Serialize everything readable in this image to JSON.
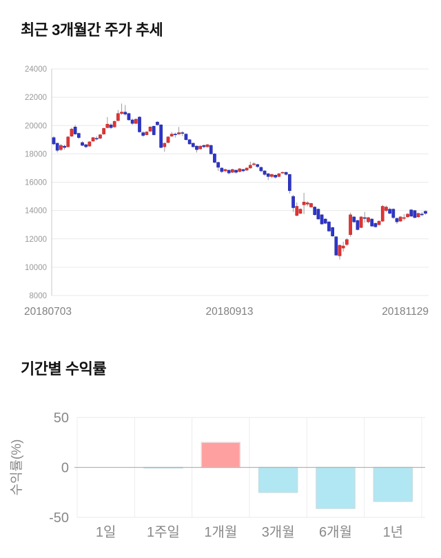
{
  "page": {
    "background": "#ffffff"
  },
  "chart_data": [
    {
      "type": "candlestick",
      "title": "최근 3개월간 주가 추세",
      "x_tick_labels": [
        "20180703",
        "20180913",
        "20181129"
      ],
      "y_ticks": [
        24000,
        22000,
        20000,
        18000,
        16000,
        14000,
        12000,
        10000,
        8000
      ],
      "ylim": [
        8000,
        24000
      ],
      "grid": "horizontal",
      "up_color": "#e03434",
      "down_color": "#2d35cb",
      "wick_color": "#999999",
      "axis_text_color": "#999999",
      "date_text_color": "#808080",
      "candles_format": [
        "open",
        "high",
        "low",
        "close"
      ],
      "candles": [
        [
          19150,
          19250,
          18600,
          18700
        ],
        [
          18750,
          18800,
          18100,
          18250
        ],
        [
          18300,
          18700,
          18200,
          18600
        ],
        [
          18550,
          18650,
          18300,
          18450
        ],
        [
          18500,
          19250,
          18450,
          19200
        ],
        [
          19250,
          19850,
          19200,
          19750
        ],
        [
          19900,
          20050,
          19350,
          19400
        ],
        [
          19450,
          19500,
          19050,
          19150
        ],
        [
          18800,
          18900,
          18550,
          18600
        ],
        [
          18650,
          18700,
          18400,
          18500
        ],
        [
          18550,
          18900,
          18500,
          18850
        ],
        [
          18900,
          19200,
          18850,
          19150
        ],
        [
          19100,
          19250,
          18950,
          19050
        ],
        [
          19100,
          19400,
          19050,
          19350
        ],
        [
          19400,
          19850,
          19350,
          19800
        ],
        [
          19850,
          20600,
          19800,
          20100
        ],
        [
          20050,
          20150,
          19750,
          19850
        ],
        [
          19900,
          20350,
          19850,
          20300
        ],
        [
          20350,
          21100,
          20300,
          20850
        ],
        [
          20850,
          21550,
          20750,
          20950
        ],
        [
          20950,
          21450,
          20700,
          20800
        ],
        [
          20850,
          20900,
          20350,
          20400
        ],
        [
          20400,
          20500,
          20050,
          20150
        ],
        [
          20150,
          20500,
          20100,
          20450
        ],
        [
          20600,
          20650,
          19500,
          19550
        ],
        [
          19500,
          19600,
          19200,
          19300
        ],
        [
          19350,
          19600,
          19300,
          19550
        ],
        [
          19600,
          19950,
          19550,
          19900
        ],
        [
          19950,
          20000,
          19300,
          19350
        ],
        [
          20250,
          20300,
          20000,
          20050
        ],
        [
          20050,
          20100,
          18400,
          18450
        ],
        [
          18500,
          18800,
          18150,
          18750
        ],
        [
          18800,
          19250,
          18750,
          19200
        ],
        [
          19250,
          19550,
          19200,
          19400
        ],
        [
          19400,
          19500,
          19150,
          19350
        ],
        [
          19400,
          19900,
          19350,
          19500
        ],
        [
          19500,
          19600,
          19250,
          19450
        ],
        [
          19400,
          19450,
          18950,
          19000
        ],
        [
          19000,
          19050,
          18650,
          18700
        ],
        [
          18750,
          18800,
          18450,
          18500
        ],
        [
          18550,
          18600,
          18100,
          18300
        ],
        [
          18350,
          18600,
          18300,
          18550
        ],
        [
          18600,
          18650,
          18400,
          18500
        ],
        [
          18500,
          18700,
          18450,
          18650
        ],
        [
          18600,
          18650,
          17950,
          18000
        ],
        [
          18000,
          18050,
          17350,
          17400
        ],
        [
          17400,
          17450,
          16800,
          17050
        ],
        [
          17000,
          17050,
          16650,
          16750
        ],
        [
          16800,
          16950,
          16700,
          16900
        ],
        [
          16850,
          16900,
          16550,
          16650
        ],
        [
          16700,
          16950,
          16650,
          16900
        ],
        [
          16850,
          16900,
          16600,
          16700
        ],
        [
          16750,
          17000,
          16700,
          16950
        ],
        [
          16900,
          16950,
          16700,
          16800
        ],
        [
          16850,
          17050,
          16800,
          17000
        ],
        [
          17000,
          17450,
          16950,
          17200
        ],
        [
          17250,
          17400,
          17150,
          17300
        ],
        [
          17250,
          17300,
          17000,
          17100
        ],
        [
          17050,
          17100,
          16700,
          16800
        ],
        [
          16800,
          16850,
          16450,
          16550
        ],
        [
          16600,
          16650,
          16150,
          16400
        ],
        [
          16400,
          16600,
          16300,
          16550
        ],
        [
          16500,
          16550,
          16250,
          16350
        ],
        [
          16400,
          16650,
          16350,
          16600
        ],
        [
          16650,
          16750,
          16600,
          16700
        ],
        [
          16700,
          16750,
          16450,
          16550
        ],
        [
          16550,
          16600,
          15200,
          15400
        ],
        [
          15000,
          15100,
          13900,
          14200
        ],
        [
          13650,
          14570,
          13600,
          14300
        ],
        [
          13800,
          14150,
          13750,
          14100
        ],
        [
          14400,
          15250,
          13750,
          14600
        ],
        [
          14450,
          14650,
          14300,
          14550
        ],
        [
          14250,
          14550,
          14200,
          14500
        ],
        [
          14250,
          14300,
          13650,
          13700
        ],
        [
          14100,
          14150,
          13350,
          13400
        ],
        [
          13700,
          13750,
          13000,
          13050
        ],
        [
          13400,
          13450,
          13050,
          13100
        ],
        [
          13200,
          13250,
          12500,
          12550
        ],
        [
          12800,
          12850,
          12150,
          12200
        ],
        [
          12150,
          12200,
          10800,
          10850
        ],
        [
          10800,
          11600,
          10550,
          11550
        ],
        [
          11350,
          11800,
          11100,
          11500
        ],
        [
          11600,
          12050,
          11500,
          11950
        ],
        [
          12300,
          13850,
          12150,
          13700
        ],
        [
          13550,
          13600,
          13100,
          13200
        ],
        [
          13300,
          13350,
          12600,
          12650
        ],
        [
          12800,
          13600,
          12750,
          13550
        ],
        [
          13500,
          13900,
          13150,
          13450
        ],
        [
          13200,
          13550,
          13100,
          13500
        ],
        [
          13400,
          13450,
          12850,
          12900
        ],
        [
          13100,
          13150,
          12800,
          12850
        ],
        [
          13000,
          13300,
          12950,
          13250
        ],
        [
          13250,
          14400,
          13200,
          14300
        ],
        [
          14000,
          14350,
          13900,
          14250
        ],
        [
          14100,
          14200,
          13750,
          13800
        ],
        [
          14100,
          14150,
          13400,
          13500
        ],
        [
          13450,
          13500,
          13050,
          13200
        ],
        [
          13250,
          13600,
          13200,
          13550
        ],
        [
          13500,
          13750,
          13300,
          13500
        ],
        [
          13550,
          13800,
          13500,
          13750
        ],
        [
          14050,
          14100,
          13550,
          13600
        ],
        [
          14000,
          14050,
          13450,
          13500
        ],
        [
          13550,
          13850,
          13500,
          13800
        ],
        [
          13750,
          13900,
          13600,
          13700
        ],
        [
          13950,
          14000,
          13700,
          13800
        ]
      ]
    },
    {
      "type": "bar",
      "title": "기간별 수익률",
      "ylabel": "수익률(%)",
      "categories": [
        "1일",
        "1주일",
        "1개월",
        "3개월",
        "6개월",
        "1년"
      ],
      "values": [
        0,
        -0.5,
        25,
        -25,
        -41,
        -34
      ],
      "y_ticks": [
        50,
        0,
        -50
      ],
      "ylim": [
        -50,
        50
      ],
      "grid": "vertical-category-boundaries",
      "positive_color": "#ffa0a0",
      "negative_color": "#b0e7f2",
      "axis_text_color": "#888888"
    }
  ]
}
